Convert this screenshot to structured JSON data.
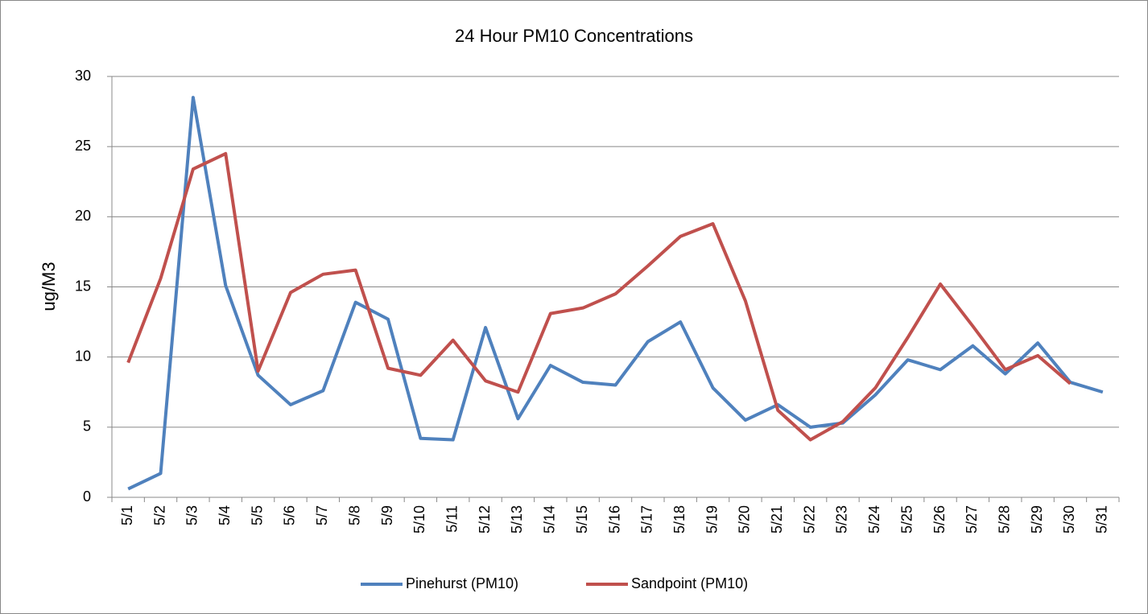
{
  "chart_data": {
    "type": "line",
    "title": "24 Hour PM10 Concentrations",
    "y_label": "ug/M3",
    "categories": [
      "5/1",
      "5/2",
      "5/3",
      "5/4",
      "5/5",
      "5/6",
      "5/7",
      "5/8",
      "5/9",
      "5/10",
      "5/11",
      "5/12",
      "5/13",
      "5/14",
      "5/15",
      "5/16",
      "5/17",
      "5/18",
      "5/19",
      "5/20",
      "5/21",
      "5/22",
      "5/23",
      "5/24",
      "5/25",
      "5/26",
      "5/27",
      "5/28",
      "5/29",
      "5/30",
      "5/31"
    ],
    "series": [
      {
        "name": "Pinehurst (PM10)",
        "color": "#4f81bd",
        "values": [
          0.6,
          1.7,
          28.5,
          15.1,
          8.7,
          6.6,
          7.6,
          13.9,
          12.7,
          4.2,
          4.1,
          12.1,
          5.6,
          9.4,
          8.2,
          8.0,
          11.1,
          12.5,
          7.8,
          5.5,
          6.6,
          5.0,
          5.3,
          7.3,
          9.8,
          9.1,
          10.8,
          8.8,
          11.0,
          8.2,
          7.5
        ]
      },
      {
        "name": "Sandpoint (PM10)",
        "color": "#c0504d",
        "values": [
          9.6,
          15.6,
          23.4,
          24.5,
          9.0,
          14.6,
          15.9,
          16.2,
          9.2,
          8.7,
          11.2,
          8.3,
          7.5,
          13.1,
          13.5,
          14.5,
          16.5,
          18.6,
          19.5,
          14.0,
          6.2,
          4.1,
          5.4,
          7.8,
          11.4,
          15.2,
          12.2,
          9.1,
          10.1,
          8.1,
          null
        ]
      }
    ],
    "ylim": [
      0,
      30
    ],
    "yticks": [
      0,
      5,
      10,
      15,
      20,
      25,
      30
    ],
    "grid": true,
    "legend": "bottom"
  }
}
